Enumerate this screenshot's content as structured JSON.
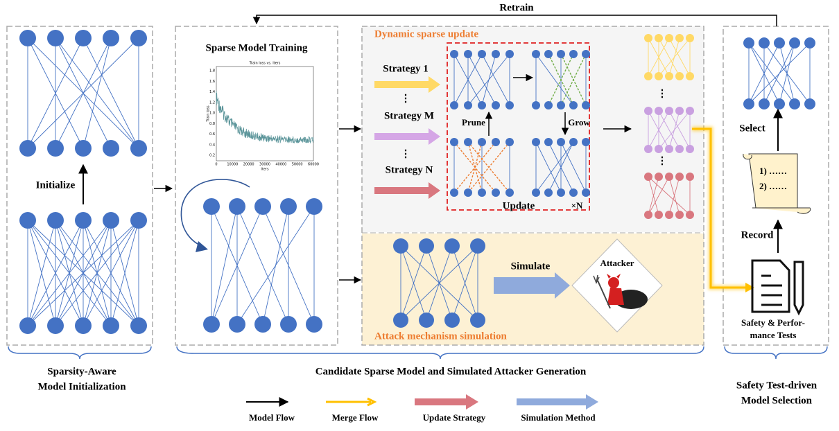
{
  "retrain": "Retrain",
  "panels": {
    "dynamic": "Dynamic sparse update",
    "training": "Sparse Model Training",
    "attack": "Attack mechanism simulation"
  },
  "inset": {
    "title": "Train loss  vs. Iters",
    "xlabel": "Iters",
    "ylabel": "Train loss",
    "xticks": [
      "0",
      "10000",
      "20000",
      "30000",
      "40000",
      "50000",
      "60000"
    ],
    "yticks": [
      "0.2",
      "0.4",
      "0.6",
      "0.8",
      "1.0",
      "1.2",
      "1.4",
      "1.6",
      "1.8"
    ]
  },
  "strategies": [
    "Strategy 1",
    "Strategy M",
    "Strategy N"
  ],
  "update": {
    "prune": "Prune",
    "grow": "Grow",
    "label": "Update",
    "repeat": "×N"
  },
  "initialize": "Initialize",
  "simulate": "Simulate",
  "attacker": "Attacker",
  "selection": {
    "select": "Select",
    "list": [
      "1) ……",
      "2) ……"
    ],
    "record": "Record",
    "tests": [
      "Safety & Perfor-",
      "mance Tests"
    ]
  },
  "stages": [
    [
      "Sparsity-Aware",
      "Model Initialization"
    ],
    [
      "Candidate Sparse Model and Simulated Attacker Generation"
    ],
    [
      "Safety Test-driven",
      "Model Selection"
    ]
  ],
  "legend": [
    "Model Flow",
    "Merge Flow",
    "Update Strategy",
    "Simulation Method"
  ]
}
